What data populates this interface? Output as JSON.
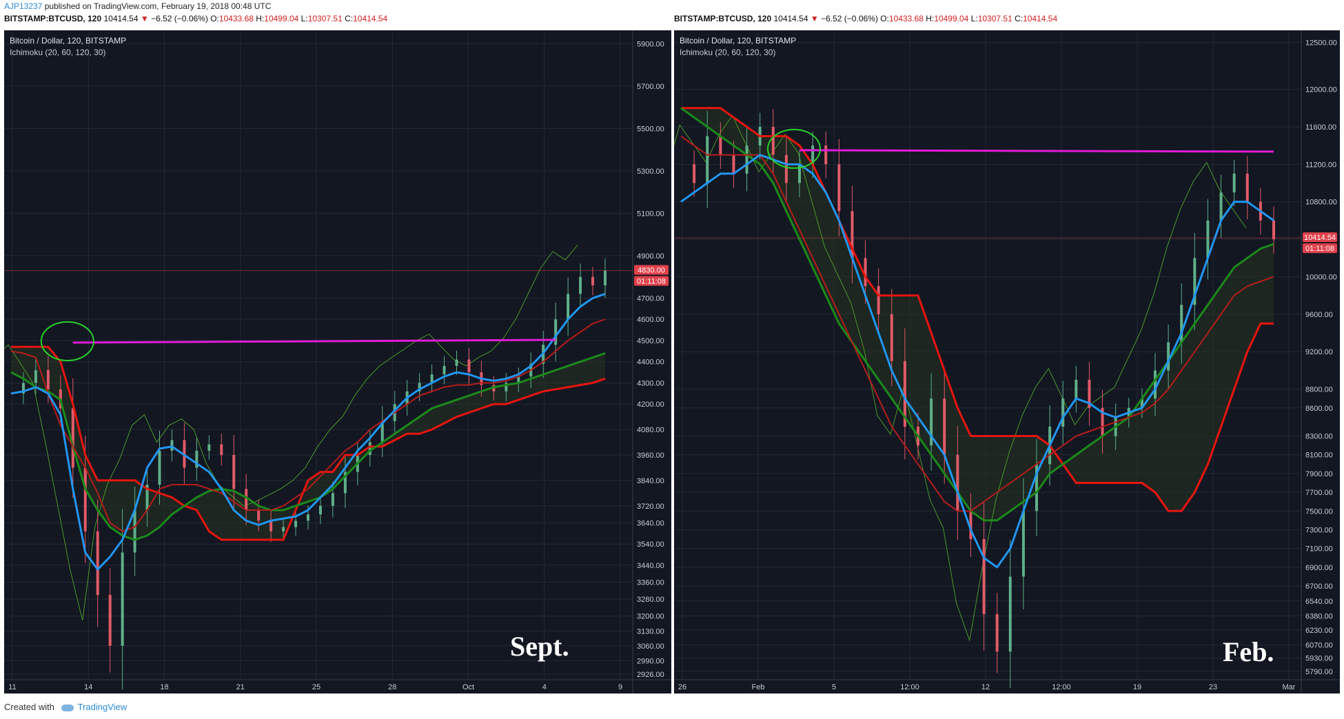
{
  "header": {
    "user": "AJP13237",
    "published": "published on TradingView.com, February 19, 2018 00:48 UTC"
  },
  "quote": {
    "symbol": "BITSTAMP:BTCUSD, 120",
    "last": "10414.54",
    "change": "−6.52 (−0.06%)",
    "o_label": "O:",
    "o": "10433.68",
    "h_label": "H:",
    "h": "10499.04",
    "l_label": "L:",
    "l": "10307.51",
    "c_label": "C:",
    "c": "10414.54"
  },
  "footer": {
    "created_with": "Created with",
    "brand": "TradingView"
  },
  "colors": {
    "bg": "#131722",
    "tenkan": "#2196f3",
    "kijun": "#b71c1c",
    "span_a": "#1b8a1b",
    "span_b": "#e8150f",
    "chikou": "#4c9a2a",
    "resistance": "#e01bd6",
    "marker": "#27d22a"
  },
  "chart_data": [
    {
      "type": "candlestick",
      "title": "Bitcoin / Dollar, 120, BITSTAMP",
      "indicator": "Ichimoku (20, 60, 120, 30)",
      "annotation": "Sept.",
      "price_label": "4830.00",
      "timer": "01:11:08",
      "ylim": [
        2900,
        5950
      ],
      "yticks": [
        "5900.00",
        "5700.00",
        "5500.00",
        "5300.00",
        "5100.00",
        "4900.00",
        "4700.00",
        "4600.00",
        "4500.00",
        "4400.00",
        "4300.00",
        "4200.00",
        "4080.00",
        "3960.00",
        "3840.00",
        "3720.00",
        "3640.00",
        "3540.00",
        "3440.00",
        "3360.00",
        "3280.00",
        "3200.00",
        "3130.00",
        "3060.00",
        "2990.00",
        "2926.00"
      ],
      "xticks": [
        "11",
        "14",
        "18",
        "21",
        "25",
        "28",
        "Oct",
        "4",
        "9"
      ],
      "resistance_level": 4490,
      "series": {
        "price": [
          4250,
          4300,
          4360,
          4270,
          4180,
          3900,
          3600,
          3300,
          3060,
          3500,
          3700,
          3820,
          3980,
          4030,
          3900,
          3980,
          4010,
          3960,
          3800,
          3700,
          3650,
          3600,
          3620,
          3650,
          3680,
          3720,
          3780,
          3880,
          3960,
          4020,
          4120,
          4200,
          4260,
          4300,
          4340,
          4380,
          4410,
          4350,
          4290,
          4260,
          4300,
          4330,
          4390,
          4480,
          4600,
          4720,
          4800,
          4760,
          4830
        ],
        "tenkan": [
          4250,
          4260,
          4280,
          4250,
          4150,
          3800,
          3500,
          3420,
          3480,
          3560,
          3700,
          3900,
          3990,
          4000,
          3960,
          3920,
          3880,
          3800,
          3700,
          3650,
          3630,
          3650,
          3660,
          3670,
          3700,
          3760,
          3820,
          3900,
          3980,
          4040,
          4110,
          4170,
          4230,
          4270,
          4300,
          4330,
          4350,
          4340,
          4320,
          4310,
          4320,
          4340,
          4380,
          4440,
          4520,
          4600,
          4660,
          4700,
          4720
        ],
        "kijun": [
          4450,
          4440,
          4420,
          4250,
          4100,
          4000,
          3900,
          3780,
          3640,
          3600,
          3620,
          3700,
          3800,
          3820,
          3820,
          3820,
          3800,
          3780,
          3740,
          3700,
          3700,
          3700,
          3720,
          3760,
          3800,
          3860,
          3920,
          3980,
          4020,
          4080,
          4120,
          4160,
          4200,
          4240,
          4260,
          4280,
          4290,
          4290,
          4300,
          4300,
          4310,
          4330,
          4360,
          4400,
          4450,
          4500,
          4540,
          4580,
          4600
        ],
        "span_a": [
          4350,
          4320,
          4280,
          4260,
          4220,
          4000,
          3800,
          3700,
          3620,
          3580,
          3560,
          3580,
          3620,
          3680,
          3720,
          3760,
          3790,
          3800,
          3790,
          3760,
          3720,
          3700,
          3700,
          3720,
          3740,
          3760,
          3800,
          3860,
          3920,
          3980,
          4020,
          4060,
          4100,
          4140,
          4180,
          4200,
          4220,
          4240,
          4260,
          4280,
          4290,
          4300,
          4320,
          4340,
          4360,
          4380,
          4400,
          4420,
          4440
        ],
        "span_b": [
          4470,
          4470,
          4470,
          4470,
          4400,
          4200,
          3960,
          3840,
          3840,
          3840,
          3840,
          3800,
          3780,
          3760,
          3720,
          3700,
          3600,
          3560,
          3560,
          3560,
          3560,
          3560,
          3560,
          3700,
          3840,
          3880,
          3880,
          3960,
          3960,
          4000,
          4000,
          4030,
          4060,
          4060,
          4080,
          4110,
          4140,
          4160,
          4180,
          4200,
          4200,
          4220,
          4240,
          4260,
          4270,
          4280,
          4290,
          4300,
          4320
        ]
      }
    },
    {
      "type": "candlestick",
      "title": "Bitcoin / Dollar, 120, BITSTAMP",
      "indicator": "Ichimoku (20, 60, 120, 30)",
      "annotation": "Feb.",
      "price_label": "10414.54",
      "timer": "01:11:08",
      "ylim": [
        5700,
        12600
      ],
      "yticks": [
        "12500.00",
        "12000.00",
        "11600.00",
        "11200.00",
        "10800.00",
        "10400.00",
        "10000.00",
        "9600.00",
        "9200.00",
        "8800.00",
        "8600.00",
        "8300.00",
        "8100.00",
        "7900.00",
        "7700.00",
        "7500.00",
        "7300.00",
        "7100.00",
        "6900.00",
        "6700.00",
        "6540.00",
        "6380.00",
        "6230.00",
        "6070.00",
        "5930.00",
        "5790.00"
      ],
      "xticks": [
        "26",
        "Feb",
        "5",
        "12:00",
        "12",
        "12:00",
        "19",
        "23",
        "Mar"
      ],
      "resistance_level": 11350,
      "series": {
        "price": [
          11200,
          11000,
          11500,
          11300,
          11100,
          11400,
          11600,
          11300,
          11000,
          11200,
          11400,
          11200,
          10700,
          10200,
          9900,
          9600,
          9100,
          8400,
          8200,
          8700,
          8100,
          7500,
          7200,
          6400,
          6000,
          6800,
          7500,
          8000,
          8400,
          8700,
          8900,
          8600,
          8300,
          8500,
          8600,
          8700,
          9000,
          9300,
          9700,
          10200,
          10600,
          10900,
          11100,
          10800,
          10600,
          10400
        ],
        "tenkan": [
          10800,
          10900,
          11000,
          11100,
          11100,
          11200,
          11300,
          11250,
          11200,
          11200,
          11100,
          10900,
          10600,
          10200,
          9800,
          9400,
          9000,
          8700,
          8500,
          8300,
          8100,
          7700,
          7300,
          7000,
          6900,
          7100,
          7500,
          7900,
          8200,
          8500,
          8700,
          8650,
          8550,
          8500,
          8550,
          8600,
          8800,
          9100,
          9400,
          9800,
          10200,
          10600,
          10800,
          10800,
          10700,
          10600
        ],
        "kijun": [
          11500,
          11400,
          11300,
          11300,
          11300,
          11300,
          11300,
          11100,
          10800,
          10500,
          10200,
          9900,
          9600,
          9300,
          9000,
          8700,
          8400,
          8200,
          8000,
          7800,
          7600,
          7500,
          7500,
          7600,
          7700,
          7800,
          7900,
          8000,
          8100,
          8200,
          8300,
          8350,
          8400,
          8450,
          8500,
          8550,
          8650,
          8800,
          9000,
          9200,
          9400,
          9600,
          9800,
          9900,
          9950,
          10000
        ],
        "span_a": [
          11800,
          11700,
          11600,
          11500,
          11400,
          11300,
          11200,
          11000,
          10700,
          10400,
          10100,
          9800,
          9500,
          9300,
          9100,
          8900,
          8700,
          8500,
          8300,
          8100,
          7900,
          7700,
          7500,
          7400,
          7400,
          7500,
          7600,
          7700,
          7900,
          8000,
          8100,
          8200,
          8300,
          8400,
          8500,
          8700,
          8900,
          9100,
          9300,
          9500,
          9700,
          9900,
          10100,
          10200,
          10300,
          10350
        ],
        "span_b": [
          11800,
          11800,
          11800,
          11800,
          11700,
          11600,
          11500,
          11500,
          11500,
          11400,
          11200,
          10900,
          10600,
          10300,
          10000,
          9800,
          9800,
          9800,
          9800,
          9400,
          9000,
          8600,
          8300,
          8300,
          8300,
          8300,
          8300,
          8300,
          8200,
          8000,
          7800,
          7800,
          7800,
          7800,
          7800,
          7800,
          7700,
          7500,
          7500,
          7700,
          8000,
          8400,
          8800,
          9200,
          9500,
          9500
        ]
      }
    }
  ]
}
